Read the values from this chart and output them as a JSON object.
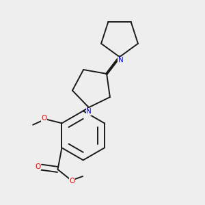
{
  "bg_color": "#eeeeee",
  "bond_color": "#1a1a1a",
  "n_color": "#0000ee",
  "o_color": "#ee0000",
  "lw": 1.4,
  "dbl_off": 0.013,
  "fig_w": 3.0,
  "fig_h": 3.0,
  "dpi": 100,
  "xlim": [
    0.05,
    0.95
  ],
  "ylim": [
    0.05,
    0.95
  ]
}
